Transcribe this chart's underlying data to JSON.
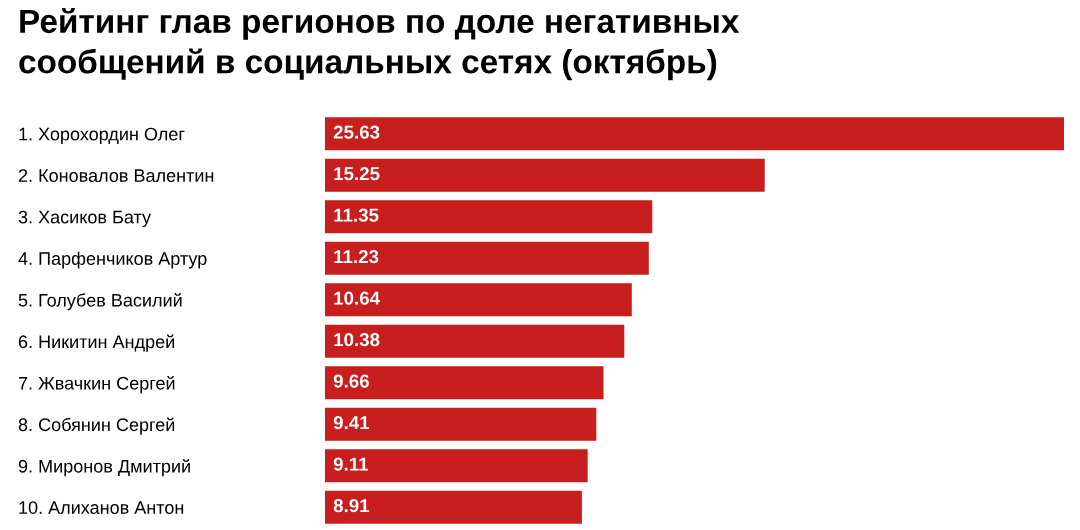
{
  "chart_data": {
    "type": "bar",
    "orientation": "horizontal",
    "title": "Рейтинг глав регионов по доле негативных\nсообщений в социальных сетях (октябрь)",
    "categories": [
      "1. Хорохордин Олег",
      "2. Коновалов Валентин",
      "3. Хасиков Бату",
      "4. Парфенчиков Артур",
      "5. Голубев Василий",
      "6. Никитин Андрей",
      "7. Жвачкин Сергей",
      "8. Собянин Сергей",
      "9. Миронов Дмитрий",
      "10. Алиханов Антон"
    ],
    "values": [
      25.63,
      15.25,
      11.35,
      11.23,
      10.64,
      10.38,
      9.66,
      9.41,
      9.11,
      8.91
    ],
    "color": "#c81e1e",
    "data_labels": true,
    "grid": false,
    "legend": false,
    "tick_labels": "y"
  }
}
